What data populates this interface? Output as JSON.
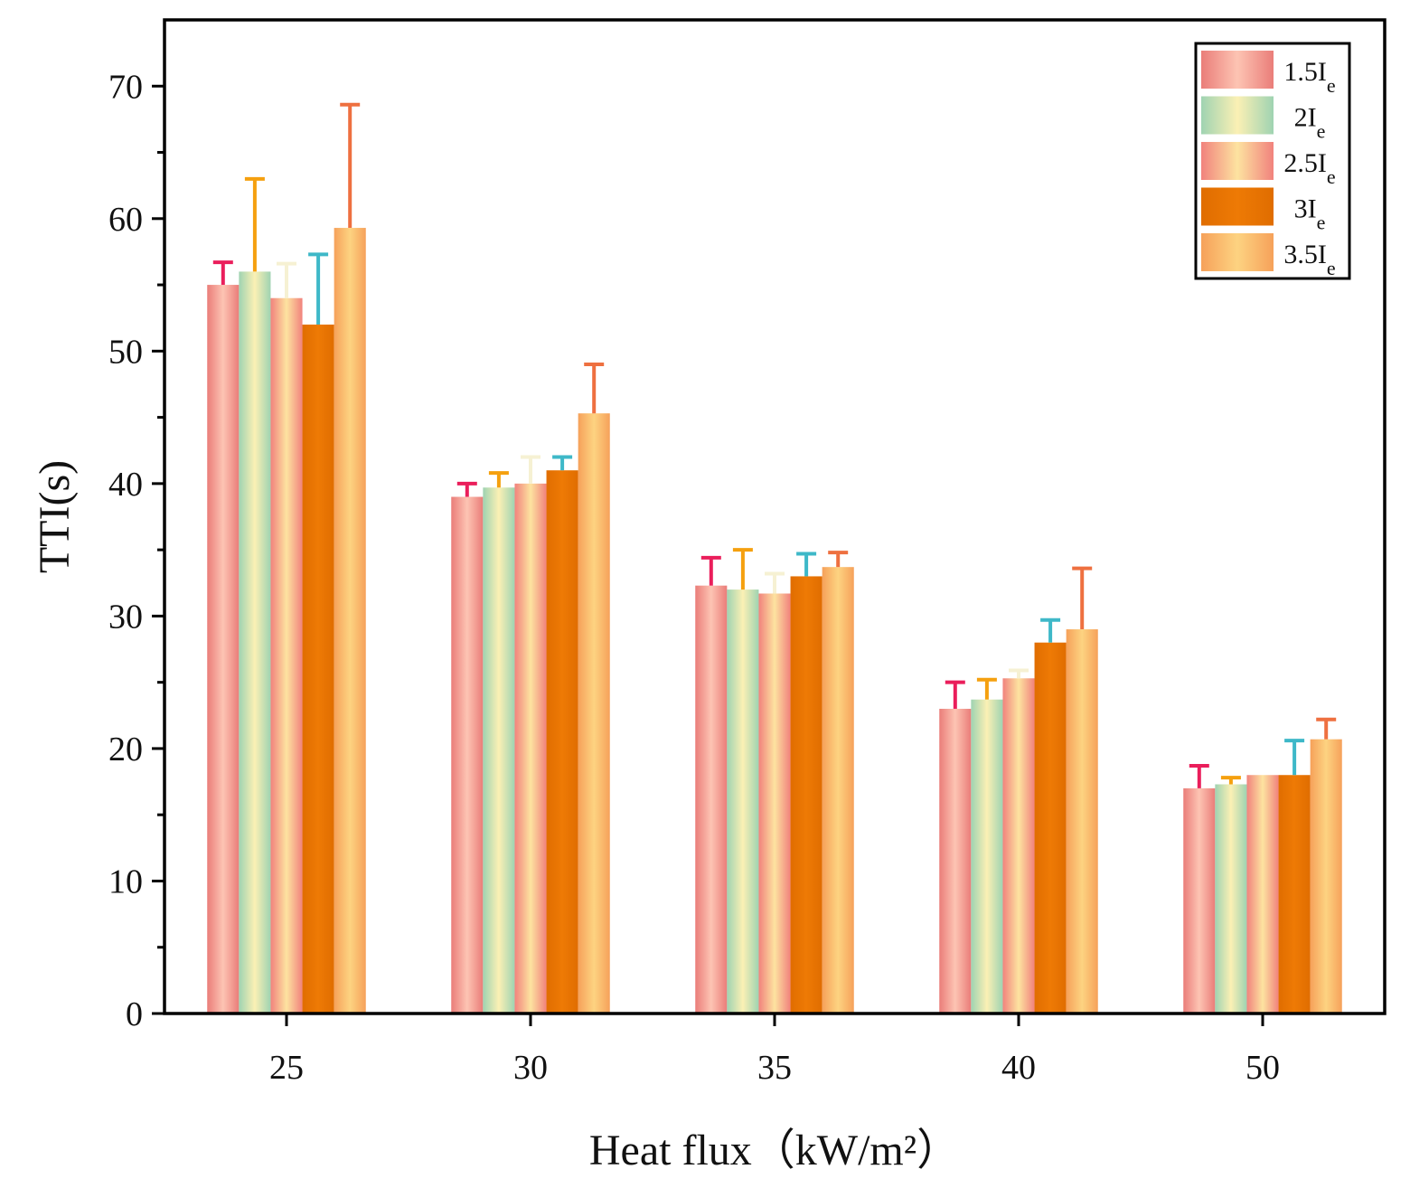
{
  "chart_data": {
    "type": "bar",
    "title": "",
    "xlabel": "Heat flux（kW/m²）",
    "ylabel": "TTI(s)",
    "ylim": [
      0,
      75
    ],
    "yticks": [
      0,
      10,
      20,
      30,
      40,
      50,
      60,
      70
    ],
    "grid": false,
    "legend_position": "top-right",
    "categories": [
      "25",
      "30",
      "35",
      "40",
      "50"
    ],
    "series": [
      {
        "name": "1.5I",
        "subscript": "e",
        "values": [
          55.0,
          39.0,
          32.3,
          23.0,
          17.0
        ],
        "errors": [
          1.7,
          1.0,
          2.1,
          2.0,
          1.7
        ],
        "colors": [
          "#ea7d79",
          "#fdc4b3",
          "#ea7d79"
        ],
        "error_color": "#ea1e5b"
      },
      {
        "name": "2I",
        "subscript": "e",
        "values": [
          56.0,
          39.7,
          32.0,
          23.7,
          17.3
        ],
        "errors": [
          7.0,
          1.1,
          3.0,
          1.5,
          0.5
        ],
        "colors": [
          "#9fd3b2",
          "#fbf0b4",
          "#9fd3b2"
        ],
        "error_color": "#f5a00f"
      },
      {
        "name": "2.5I",
        "subscript": "e",
        "values": [
          54.0,
          40.0,
          31.7,
          25.3,
          18.0
        ],
        "errors": [
          2.6,
          2.0,
          1.5,
          0.6,
          0.0
        ],
        "colors": [
          "#f1827d",
          "#fde3a0",
          "#f1827d"
        ],
        "error_color": "#f6f1d3"
      },
      {
        "name": "3I",
        "subscript": "e",
        "values": [
          52.0,
          41.0,
          33.0,
          28.0,
          18.0
        ],
        "errors": [
          5.3,
          1.0,
          1.7,
          1.7,
          2.6
        ],
        "colors": [
          "#e06d00",
          "#ee7a05",
          "#e06d00"
        ],
        "error_color": "#3eb8c8"
      },
      {
        "name": "3.5I",
        "subscript": "e",
        "values": [
          59.3,
          45.3,
          33.7,
          29.0,
          20.7
        ],
        "errors": [
          9.3,
          3.7,
          1.1,
          4.6,
          1.5
        ],
        "colors": [
          "#f6a15a",
          "#fdd381",
          "#f6a15a"
        ],
        "error_color": "#ee7040"
      }
    ]
  }
}
